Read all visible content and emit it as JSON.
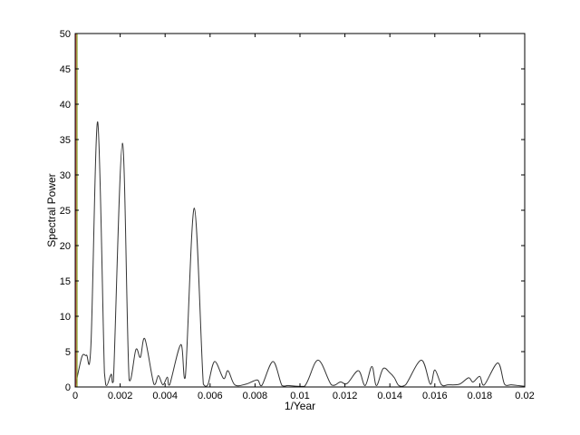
{
  "chart_data": {
    "type": "line",
    "title": "",
    "xlabel": "1/Year",
    "ylabel": "Spectral Power",
    "xlim": [
      0,
      0.02
    ],
    "ylim": [
      0,
      50
    ],
    "grid": false,
    "xticks": [
      "0",
      "0.002",
      "0.004",
      "0.006",
      "0.008",
      "0.01",
      "0.012",
      "0.014",
      "0.016",
      "0.018",
      "0.02"
    ],
    "yticks": [
      "0",
      "5",
      "10",
      "15",
      "20",
      "25",
      "30",
      "35",
      "40",
      "45",
      "50"
    ],
    "series": [
      {
        "color": "#333333",
        "x": [
          0,
          0.0003,
          0.0005,
          0.0007,
          0.001,
          0.0013,
          0.0014,
          0.0016,
          0.0017,
          0.0021,
          0.0024,
          0.0027,
          0.0029,
          0.0031,
          0.0035,
          0.0037,
          0.0039,
          0.0041,
          0.0042,
          0.0047,
          0.0049,
          0.0053,
          0.0057,
          0.0059,
          0.0062,
          0.0066,
          0.0068,
          0.0071,
          0.0076,
          0.0081,
          0.0083,
          0.0088,
          0.0092,
          0.0095,
          0.0102,
          0.0108,
          0.0114,
          0.0118,
          0.0121,
          0.0126,
          0.0129,
          0.0132,
          0.0134,
          0.0137,
          0.014,
          0.0142,
          0.0144,
          0.0147,
          0.0154,
          0.0158,
          0.016,
          0.0163,
          0.0166,
          0.0171,
          0.0175,
          0.0177,
          0.018,
          0.0182,
          0.0188,
          0.0191,
          0.0194,
          0.0197,
          0.02
        ],
        "y": [
          0,
          4.3,
          4.5,
          6,
          37.5,
          2,
          0.2,
          1.8,
          0.8,
          34.5,
          1,
          5.3,
          4.2,
          6.8,
          0.4,
          1.6,
          0.3,
          1.4,
          0.3,
          6,
          1.4,
          25.3,
          0.4,
          0.3,
          3.6,
          1.2,
          2.3,
          0.3,
          0.4,
          1,
          0.2,
          3.6,
          0.2,
          0.2,
          0.1,
          3.8,
          0.3,
          0.7,
          0.5,
          2.3,
          0.2,
          2.9,
          0.2,
          2.6,
          2.0,
          1.3,
          0.2,
          0.3,
          3.8,
          0.4,
          2.4,
          0.3,
          0.3,
          0.4,
          1.3,
          0.7,
          1.5,
          0.3,
          3.4,
          0.4,
          0.3,
          0.2,
          0.1
        ]
      },
      {
        "color": "#e05050",
        "x": [
          3e-05,
          3e-05
        ],
        "y": [
          0,
          50
        ]
      },
      {
        "color": "#80a020",
        "x": [
          8e-05,
          8e-05
        ],
        "y": [
          0,
          50
        ]
      }
    ]
  }
}
